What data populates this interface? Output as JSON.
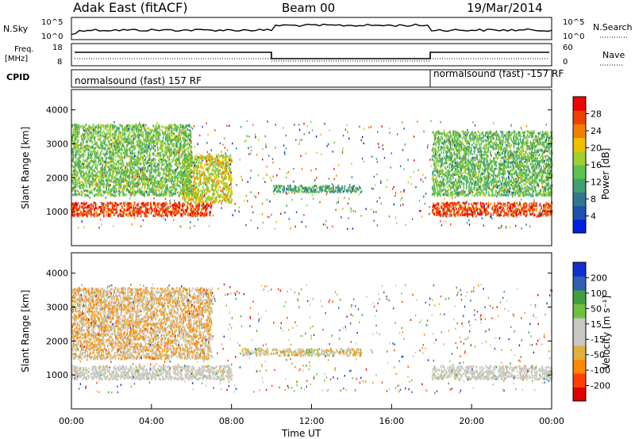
{
  "header": {
    "station": "Adak East (fitACF)",
    "beam": "Beam 00",
    "date": "19/Mar/2014"
  },
  "sky_panel": {
    "left_label": "N.Sky",
    "left_ticks": [
      "10^5",
      "10^0"
    ],
    "right_label": "N.Search",
    "right_ticks": [
      "10^5",
      "10^0"
    ]
  },
  "freq_panel": {
    "left_label_line1": "Freq.",
    "left_label_line2": "[MHz]",
    "left_ticks": [
      "18",
      "8"
    ],
    "right_label": "Nave",
    "right_ticks": [
      "60",
      "0"
    ]
  },
  "cpid_panel": {
    "label": "CPID",
    "mode1": "normalsound (fast) 157 RF",
    "mode2": "normalsound (fast) -157 RF"
  },
  "colors": {
    "power": [
      "#0020e0",
      "#2050b0",
      "#307890",
      "#40a070",
      "#60c050",
      "#a0d030",
      "#f0c000",
      "#f08000",
      "#f04000",
      "#f00000"
    ],
    "velocity": [
      "#e00000",
      "#ff4000",
      "#ff8800",
      "#e0b040",
      "#c8c8c0",
      "#c8c8c0",
      "#70c040",
      "#40a040",
      "#3060b0",
      "#1030d0"
    ]
  },
  "chart_data": [
    {
      "type": "heatmap",
      "title": "",
      "ylabel": "Slant Range [km]",
      "xlabel": "Time UT",
      "ylim": [
        0,
        4600
      ],
      "yticks": [
        "1000",
        "2000",
        "3000",
        "4000"
      ],
      "x_tick_labels": [
        "00:00",
        "04:00",
        "08:00",
        "12:00",
        "16:00",
        "20:00",
        "00:00"
      ],
      "xlim_hours": [
        0,
        24
      ],
      "colorbar": {
        "label": "Power [dB]",
        "ticks": [
          "4",
          "8",
          "12",
          "16",
          "20",
          "24",
          "28"
        ],
        "range": [
          0,
          30
        ]
      },
      "features": [
        {
          "name": "ground scatter band",
          "hours": [
            0,
            7
          ],
          "range_km": [
            900,
            1300
          ],
          "value": 27
        },
        {
          "name": "rising echo",
          "hours": [
            5.5,
            8
          ],
          "range_km": [
            1300,
            2700
          ],
          "value": 18
        },
        {
          "name": "f-region echoes",
          "hours": [
            0,
            6
          ],
          "range_km": [
            1500,
            3600
          ],
          "value": 14
        },
        {
          "name": "midday echo",
          "hours": [
            10,
            14.5
          ],
          "range_km": [
            1600,
            1800
          ],
          "value": 10
        },
        {
          "name": "evening ground scatter",
          "hours": [
            18,
            24
          ],
          "range_km": [
            900,
            1300
          ],
          "value": 27
        },
        {
          "name": "evening echoes",
          "hours": [
            18,
            24
          ],
          "range_km": [
            1500,
            3400
          ],
          "value": 13
        }
      ]
    },
    {
      "type": "heatmap",
      "title": "",
      "ylabel": "Slant Range [km]",
      "xlabel": "Time UT",
      "ylim": [
        0,
        4600
      ],
      "yticks": [
        "1000",
        "2000",
        "3000",
        "4000"
      ],
      "x_tick_labels": [
        "00:00",
        "04:00",
        "08:00",
        "12:00",
        "16:00",
        "20:00",
        "00:00"
      ],
      "xlim_hours": [
        0,
        24
      ],
      "colorbar": {
        "label": "Velocity [m s⁻¹]",
        "ticks": [
          "-200",
          "-100",
          "-50",
          "-15",
          "15",
          "50",
          "100",
          "200"
        ],
        "range": [
          -250,
          250
        ]
      },
      "features": [
        {
          "name": "ground scatter band",
          "hours": [
            0,
            8
          ],
          "range_km": [
            900,
            1300
          ],
          "value": 0
        },
        {
          "name": "evening ground scatter",
          "hours": [
            18,
            24
          ],
          "range_km": [
            900,
            1300
          ],
          "value": 0
        },
        {
          "name": "morning ionospheric echo",
          "hours": [
            0,
            7
          ],
          "range_km": [
            1500,
            3600
          ],
          "value": -60
        },
        {
          "name": "midday echo",
          "hours": [
            8.5,
            14.5
          ],
          "range_km": [
            1600,
            1800
          ],
          "value": -30
        }
      ]
    }
  ]
}
